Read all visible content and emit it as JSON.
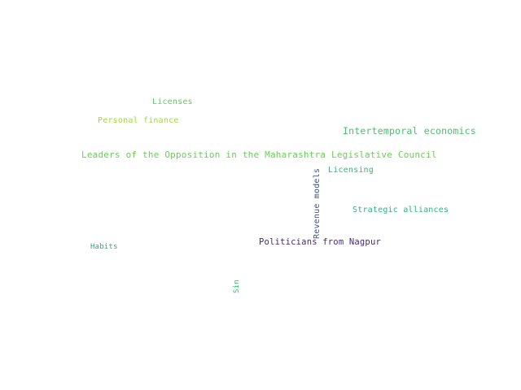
{
  "words": [
    {
      "id": "licenses",
      "text": "Licenses",
      "color": "#5ec962"
    },
    {
      "id": "personal-finance",
      "text": "Personal finance",
      "color": "#9fda3a"
    },
    {
      "id": "intertemporal-economics",
      "text": "Intertemporal economics",
      "color": "#4ac16d"
    },
    {
      "id": "leaders-opposition",
      "text": "Leaders of the Opposition in the Maharashtra Legislative Council",
      "color": "#6ccd5a"
    },
    {
      "id": "licensing",
      "text": "Licensing",
      "color": "#35b779"
    },
    {
      "id": "revenue-models",
      "text": "Revenue models",
      "color": "#3b528b"
    },
    {
      "id": "strategic-alliances",
      "text": "Strategic alliances",
      "color": "#2db27d"
    },
    {
      "id": "politicians-nagpur",
      "text": "Politicians from Nagpur",
      "color": "#482878"
    },
    {
      "id": "habits",
      "text": "Habits",
      "color": "#27ad81"
    },
    {
      "id": "sin",
      "text": "Sin",
      "color": "#3ebc73"
    }
  ]
}
